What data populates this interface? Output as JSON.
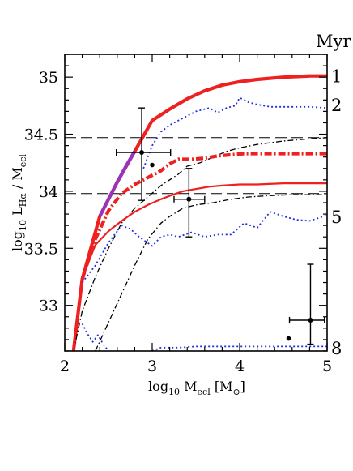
{
  "chart_data": {
    "type": "line",
    "xlabel_main": "log",
    "xlabel_sub": "10",
    "xlabel_rest": " M",
    "xlabel_rest_sub": "ecl",
    "xlabel_unit": " [M",
    "xlabel_unit_sub": "⊙",
    "xlabel_unit_end": "]",
    "ylabel_main": "log",
    "ylabel_sub1": "10",
    "ylabel_mid": " L",
    "ylabel_sub2": "Hα",
    "ylabel_div": " / M",
    "ylabel_sub3": "ecl",
    "unit_label": "Myr",
    "xlim": [
      2,
      5
    ],
    "ylim": [
      32.6,
      35.2
    ],
    "x_ticks": [
      2,
      3,
      4,
      5
    ],
    "x_tick_labels": [
      "2",
      "3",
      "4",
      "5"
    ],
    "y_ticks": [
      33,
      33.5,
      34,
      34.5,
      35
    ],
    "y_tick_labels": [
      "33",
      "33.5",
      "34",
      "34.5",
      "35"
    ],
    "age_labels": [
      {
        "text": "1",
        "y": 35.01
      },
      {
        "text": "2",
        "y": 34.76
      },
      {
        "text": "5",
        "y": 33.78
      },
      {
        "text": "8",
        "y": 32.63
      }
    ],
    "hlines": [
      34.47,
      33.98
    ],
    "series": [
      {
        "style": "red-thick",
        "color": "#ee2020",
        "width": 4.2,
        "dash": "",
        "x": [
          2.1,
          2.2,
          2.4,
          2.6,
          2.8,
          3.0,
          3.2,
          3.4,
          3.6,
          3.8,
          4.0,
          4.2,
          4.5,
          4.8,
          5.0
        ],
        "y": [
          32.6,
          33.23,
          33.78,
          34.08,
          34.35,
          34.62,
          34.72,
          34.81,
          34.88,
          34.93,
          34.96,
          34.98,
          35.0,
          35.01,
          35.01
        ]
      },
      {
        "style": "purple-thick",
        "color": "#9933bb",
        "width": 4.2,
        "dash": "",
        "x": [
          2.4,
          2.5,
          2.6,
          2.7,
          2.8
        ],
        "y": [
          33.78,
          33.93,
          34.08,
          34.22,
          34.35
        ]
      },
      {
        "style": "blue-dotted-upper",
        "color": "#2030dd",
        "width": 1.8,
        "dash": "2,3",
        "x": [
          2.9,
          3.0,
          3.1,
          3.2,
          3.35,
          3.5,
          3.65,
          3.75,
          3.85,
          3.95,
          4.0,
          4.1,
          4.2,
          4.35,
          4.5,
          4.65,
          4.8,
          5.0
        ],
        "y": [
          34.2,
          34.4,
          34.52,
          34.58,
          34.64,
          34.7,
          34.73,
          34.69,
          34.73,
          34.75,
          34.82,
          34.78,
          34.76,
          34.74,
          34.74,
          34.74,
          34.74,
          34.73
        ]
      },
      {
        "style": "black-dashdot-upper",
        "color": "#000000",
        "width": 1.3,
        "dash": "7,3,1.5,3",
        "x": [
          2.1,
          2.2,
          2.35,
          2.5,
          2.65,
          2.8,
          2.95,
          3.1,
          3.2,
          3.3,
          3.4,
          3.55,
          3.7,
          3.85,
          4.0,
          4.2,
          4.5,
          4.8,
          5.0
        ],
        "y": [
          32.6,
          32.95,
          33.25,
          33.5,
          33.72,
          33.85,
          33.95,
          34.05,
          34.1,
          34.15,
          34.22,
          34.25,
          34.3,
          34.35,
          34.38,
          34.41,
          34.44,
          34.46,
          34.47
        ]
      },
      {
        "style": "red-dashdot-thick",
        "color": "#ee2020",
        "width": 4.2,
        "dash": "9,3,2,3",
        "x": [
          2.2,
          2.35,
          2.5,
          2.65,
          2.8,
          2.95,
          3.1,
          3.2,
          3.3,
          3.45,
          3.6,
          3.75,
          3.9,
          4.05,
          4.2,
          4.4,
          4.6,
          4.8,
          5.0
        ],
        "y": [
          33.23,
          33.58,
          33.83,
          33.98,
          34.06,
          34.12,
          34.18,
          34.24,
          34.28,
          34.28,
          34.29,
          34.31,
          34.32,
          34.33,
          34.33,
          34.33,
          34.33,
          34.33,
          34.33
        ]
      },
      {
        "style": "black-dashdot-lower",
        "color": "#000000",
        "width": 1.3,
        "dash": "7,3,1.5,3",
        "x": [
          2.35,
          2.5,
          2.65,
          2.8,
          2.95,
          3.1,
          3.2,
          3.35,
          3.5,
          3.7,
          3.9,
          4.1,
          4.3,
          4.6,
          5.0
        ],
        "y": [
          32.6,
          32.85,
          33.1,
          33.35,
          33.58,
          33.72,
          33.78,
          33.85,
          33.88,
          33.9,
          33.93,
          33.95,
          33.96,
          33.97,
          33.97
        ]
      },
      {
        "style": "red-thin",
        "color": "#ee2020",
        "width": 2.2,
        "dash": "",
        "x": [
          2.1,
          2.2,
          2.35,
          2.5,
          2.65,
          2.8,
          2.95,
          3.1,
          3.2,
          3.35,
          3.5,
          3.65,
          3.8,
          4.0,
          4.2,
          4.5,
          4.8,
          5.0
        ],
        "y": [
          32.6,
          33.24,
          33.53,
          33.65,
          33.74,
          33.82,
          33.88,
          33.93,
          33.96,
          34.0,
          34.02,
          34.04,
          34.05,
          34.06,
          34.06,
          34.07,
          34.07,
          34.07
        ]
      },
      {
        "style": "blue-dotted-middle",
        "color": "#2030dd",
        "width": 1.8,
        "dash": "2,3",
        "x": [
          2.2,
          2.35,
          2.5,
          2.65,
          2.75,
          2.85,
          3.0,
          3.1,
          3.2,
          3.3,
          3.45,
          3.6,
          3.75,
          3.9,
          4.05,
          4.2,
          4.35,
          4.5,
          4.65,
          4.8,
          5.0
        ],
        "y": [
          33.2,
          33.35,
          33.55,
          33.7,
          33.67,
          33.6,
          33.52,
          33.6,
          33.62,
          33.6,
          33.64,
          33.6,
          33.62,
          33.62,
          33.72,
          33.68,
          33.82,
          33.78,
          33.75,
          33.74,
          33.79
        ]
      },
      {
        "style": "blue-dotted-bottom",
        "color": "#2030dd",
        "width": 1.8,
        "dash": "2,3",
        "x": [
          2.2,
          2.26,
          2.32,
          2.38,
          2.44,
          2.5
        ],
        "y": [
          32.84,
          32.75,
          32.68,
          32.74,
          32.66,
          32.6
        ]
      },
      {
        "style": "blue-dotted-floor",
        "color": "#2030dd",
        "width": 1.8,
        "dash": "2,3",
        "x": [
          3.0,
          3.1,
          3.3,
          3.5,
          3.8,
          4.1,
          4.5,
          5.0
        ],
        "y": [
          32.6,
          32.63,
          32.63,
          32.64,
          32.64,
          32.64,
          32.64,
          32.64
        ]
      }
    ],
    "observations": [
      {
        "x": 2.88,
        "y": 34.34,
        "xerr": [
          2.59,
          3.21
        ],
        "yerr": [
          33.92,
          34.73
        ]
      },
      {
        "x": 3.42,
        "y": 33.93,
        "xerr": [
          3.25,
          3.6
        ],
        "yerr": [
          33.6,
          34.2
        ]
      },
      {
        "x": 4.81,
        "y": 32.87,
        "xerr": [
          4.57,
          4.97
        ],
        "yerr": [
          32.66,
          33.36
        ]
      }
    ],
    "extra_points": [
      {
        "x": 3.0,
        "y": 34.23
      },
      {
        "x": 4.56,
        "y": 32.71
      }
    ]
  }
}
